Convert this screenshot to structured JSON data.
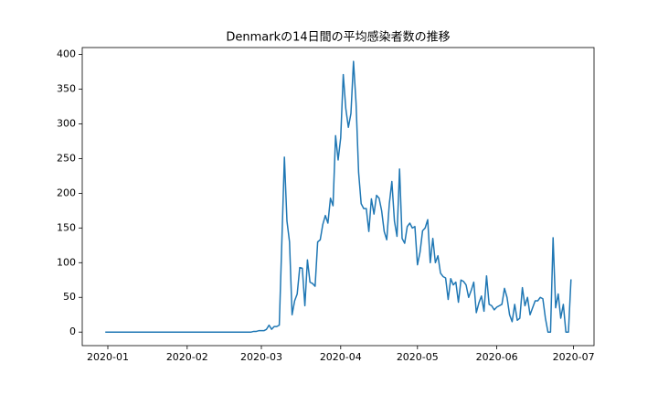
{
  "chart_data": {
    "type": "line",
    "title": "Denmarkの14日間の平均感染者数の推移",
    "x": [
      "2019-12-31",
      "2020-02-26",
      "2020-02-27",
      "2020-02-28",
      "2020-02-29",
      "2020-03-01",
      "2020-03-02",
      "2020-03-03",
      "2020-03-04",
      "2020-03-05",
      "2020-03-06",
      "2020-03-07",
      "2020-03-08",
      "2020-03-09",
      "2020-03-10",
      "2020-03-11",
      "2020-03-12",
      "2020-03-13",
      "2020-03-14",
      "2020-03-15",
      "2020-03-16",
      "2020-03-17",
      "2020-03-18",
      "2020-03-19",
      "2020-03-20",
      "2020-03-21",
      "2020-03-22",
      "2020-03-23",
      "2020-03-24",
      "2020-03-25",
      "2020-03-26",
      "2020-03-27",
      "2020-03-28",
      "2020-03-29",
      "2020-03-30",
      "2020-03-31",
      "2020-04-01",
      "2020-04-02",
      "2020-04-03",
      "2020-04-04",
      "2020-04-05",
      "2020-04-06",
      "2020-04-07",
      "2020-04-08",
      "2020-04-09",
      "2020-04-10",
      "2020-04-11",
      "2020-04-12",
      "2020-04-13",
      "2020-04-14",
      "2020-04-15",
      "2020-04-16",
      "2020-04-17",
      "2020-04-18",
      "2020-04-19",
      "2020-04-20",
      "2020-04-21",
      "2020-04-22",
      "2020-04-23",
      "2020-04-24",
      "2020-04-25",
      "2020-04-26",
      "2020-04-27",
      "2020-04-28",
      "2020-04-29",
      "2020-04-30",
      "2020-05-01",
      "2020-05-02",
      "2020-05-03",
      "2020-05-04",
      "2020-05-05",
      "2020-05-06",
      "2020-05-07",
      "2020-05-08",
      "2020-05-09",
      "2020-05-10",
      "2020-05-11",
      "2020-05-12",
      "2020-05-13",
      "2020-05-14",
      "2020-05-15",
      "2020-05-16",
      "2020-05-17",
      "2020-05-18",
      "2020-05-19",
      "2020-05-20",
      "2020-05-21",
      "2020-05-22",
      "2020-05-23",
      "2020-05-24",
      "2020-05-25",
      "2020-05-26",
      "2020-05-27",
      "2020-05-28",
      "2020-05-29",
      "2020-05-30",
      "2020-05-31",
      "2020-06-01",
      "2020-06-02",
      "2020-06-03",
      "2020-06-04",
      "2020-06-05",
      "2020-06-06",
      "2020-06-07",
      "2020-06-08",
      "2020-06-09",
      "2020-06-10",
      "2020-06-11",
      "2020-06-12",
      "2020-06-13",
      "2020-06-14",
      "2020-06-15",
      "2020-06-16",
      "2020-06-17",
      "2020-06-18",
      "2020-06-19",
      "2020-06-20",
      "2020-06-21",
      "2020-06-22",
      "2020-06-23",
      "2020-06-24",
      "2020-06-25",
      "2020-06-26",
      "2020-06-27",
      "2020-06-28",
      "2020-06-29",
      "2020-06-30"
    ],
    "series": [
      {
        "color": "#1f77b4",
        "values": [
          0,
          0,
          1,
          1,
          2,
          2,
          2,
          4,
          10,
          4,
          8,
          8,
          10,
          130,
          252,
          160,
          130,
          25,
          45,
          55,
          93,
          92,
          38,
          104,
          72,
          70,
          66,
          130,
          133,
          155,
          168,
          157,
          193,
          182,
          283,
          248,
          280,
          371,
          322,
          295,
          315,
          390,
          330,
          230,
          185,
          178,
          178,
          145,
          192,
          170,
          197,
          193,
          175,
          145,
          133,
          185,
          217,
          160,
          138,
          235,
          135,
          128,
          152,
          157,
          150,
          152,
          97,
          115,
          146,
          150,
          162,
          100,
          135,
          100,
          110,
          85,
          80,
          78,
          47,
          77,
          68,
          72,
          43,
          75,
          73,
          68,
          50,
          60,
          72,
          28,
          42,
          52,
          30,
          81,
          40,
          38,
          32,
          36,
          38,
          40,
          63,
          50,
          25,
          15,
          40,
          17,
          20,
          64,
          38,
          50,
          25,
          35,
          45,
          45,
          50,
          48,
          20,
          0,
          0,
          136,
          35,
          55,
          20,
          40,
          0,
          0,
          76
        ]
      }
    ],
    "xlim": [
      "2019-12-22",
      "2020-07-09"
    ],
    "xticks": [
      "2020-01",
      "2020-02",
      "2020-03",
      "2020-04",
      "2020-05",
      "2020-06",
      "2020-07"
    ],
    "ylim": [
      -19.5,
      410
    ],
    "yticks": [
      0,
      50,
      100,
      150,
      200,
      250,
      300,
      350,
      400
    ],
    "grid": false
  }
}
